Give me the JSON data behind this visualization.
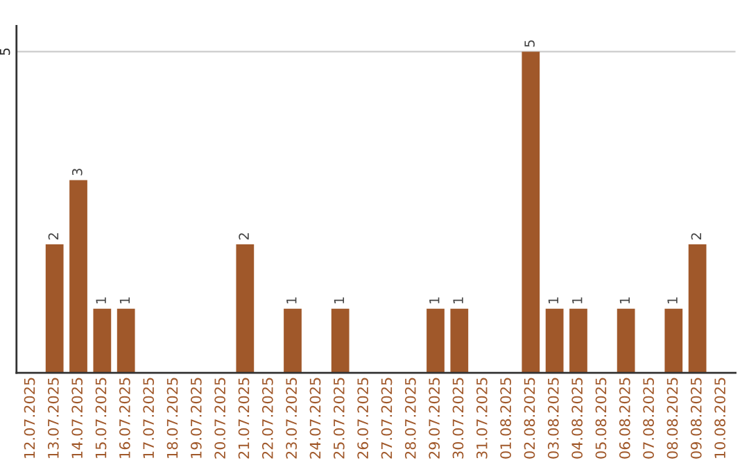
{
  "chart_data": {
    "type": "bar",
    "categories": [
      "12.07.2025",
      "13.07.2025",
      "14.07.2025",
      "15.07.2025",
      "16.07.2025",
      "17.07.2025",
      "18.07.2025",
      "19.07.2025",
      "20.07.2025",
      "21.07.2025",
      "22.07.2025",
      "23.07.2025",
      "24.07.2025",
      "25.07.2025",
      "26.07.2025",
      "27.07.2025",
      "28.07.2025",
      "29.07.2025",
      "30.07.2025",
      "31.07.2025",
      "01.08.2025",
      "02.08.2025",
      "03.08.2025",
      "04.08.2025",
      "05.08.2025",
      "06.08.2025",
      "07.08.2025",
      "08.08.2025",
      "09.08.2025",
      "10.08.2025"
    ],
    "values": [
      0,
      2,
      3,
      1,
      1,
      0,
      0,
      0,
      0,
      2,
      0,
      1,
      0,
      1,
      0,
      0,
      0,
      1,
      1,
      0,
      0,
      5,
      1,
      1,
      0,
      1,
      0,
      1,
      2,
      0
    ],
    "value_labels": [
      null,
      "2",
      "3",
      "1",
      "1",
      null,
      null,
      null,
      null,
      "2",
      null,
      "1",
      null,
      "1",
      null,
      null,
      null,
      "1",
      "1",
      null,
      null,
      "5",
      "1",
      "1",
      null,
      "1",
      null,
      "1",
      "2",
      null
    ],
    "color": "#a0582a",
    "ylim": [
      0,
      5.4
    ],
    "yticks": [
      5
    ],
    "grid": "y"
  }
}
